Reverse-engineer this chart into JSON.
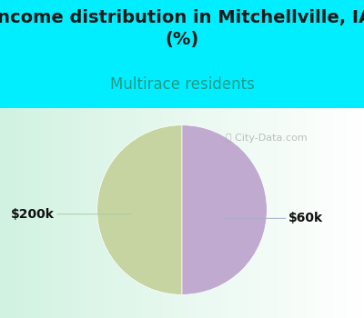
{
  "title": "Income distribution in Mitchellville, IA\n(%)",
  "subtitle": "Multirace residents",
  "slices": [
    50,
    50
  ],
  "labels": [
    "$200k",
    "$60k"
  ],
  "colors": [
    "#c5d4a0",
    "#c0aad0"
  ],
  "background_color": "#00eeff",
  "title_fontsize": 14,
  "title_color": "#1a1a1a",
  "subtitle_fontsize": 12,
  "subtitle_color": "#229988",
  "label_fontsize": 10,
  "label_color": "#111111",
  "startangle": 90,
  "watermark": "City-Data.com"
}
